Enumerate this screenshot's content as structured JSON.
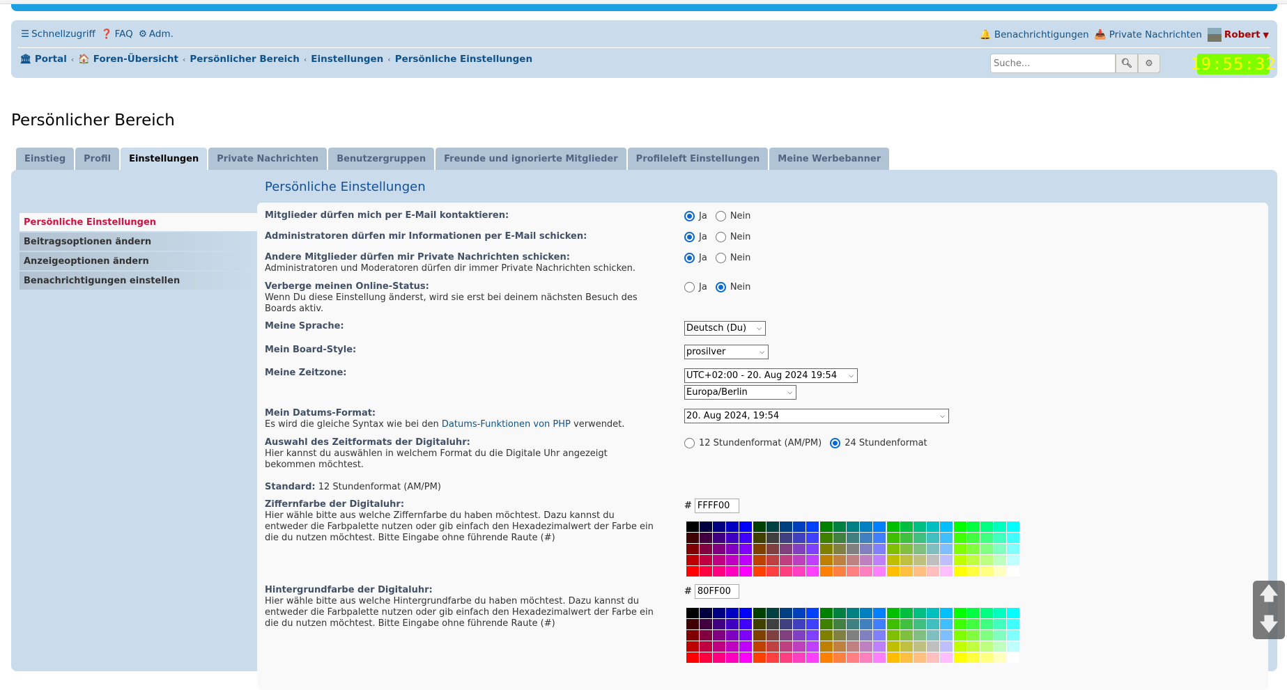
{
  "header": {
    "quick": "Schnellzugriff",
    "faq": "FAQ",
    "adm": "Adm.",
    "notifications": "Benachrichtigungen",
    "pm": "Private Nachrichten",
    "user": "Robert",
    "search_placeholder": "Suche...",
    "clock": "19:55:32"
  },
  "breadcrumb": [
    "Portal",
    "Foren-Übersicht",
    "Persönlicher Bereich",
    "Einstellungen",
    "Persönliche Einstellungen"
  ],
  "page_title": "Persönlicher Bereich",
  "tabs": [
    "Einstieg",
    "Profil",
    "Einstellungen",
    "Private Nachrichten",
    "Benutzergruppen",
    "Freunde und ignorierte Mitglieder",
    "Profileleft Einstellungen",
    "Meine Werbebanner"
  ],
  "active_tab": "Einstellungen",
  "panel_title": "Persönliche Einstellungen",
  "menu": [
    "Persönliche Einstellungen",
    "Beitragsoptionen ändern",
    "Anzeigeoptionen ändern",
    "Benachrichtigungen einstellen"
  ],
  "yes": "Ja",
  "no": "Nein",
  "form": {
    "email": {
      "label": "Mitglieder dürfen mich per E-Mail kontaktieren:",
      "value": "Ja"
    },
    "admin_email": {
      "label": "Administratoren dürfen mir Informationen per E-Mail schicken:",
      "value": "Ja"
    },
    "pm": {
      "label": "Andere Mitglieder dürfen mir Private Nachrichten schicken:",
      "explain": "Administratoren und Moderatoren dürfen dir immer Private Nachrichten schicken.",
      "value": "Ja"
    },
    "online": {
      "label": "Verberge meinen Online-Status:",
      "explain": "Wenn Du diese Einstellung änderst, wird sie erst bei deinem nächsten Besuch des Boards aktiv.",
      "value": "Nein"
    },
    "lang": {
      "label": "Meine Sprache:",
      "value": "Deutsch (Du)"
    },
    "style": {
      "label": "Mein Board-Style:",
      "value": "prosilver"
    },
    "tz": {
      "label": "Meine Zeitzone:",
      "value": "UTC+02:00 - 20. Aug 2024 19:54",
      "zone": "Europa/Berlin"
    },
    "date": {
      "label": "Mein Datums-Format:",
      "explain_pre": "Es wird die gleiche Syntax wie bei den ",
      "explain_link": "Datums-Funktionen von PHP",
      "explain_post": " verwendet.",
      "value": "20. Aug 2024, 19:54"
    },
    "clockfmt": {
      "label": "Auswahl des Zeitformats der Digitaluhr:",
      "explain": "Hier kannst du auswählen in welchem Format du die Digitale Uhr angezeigt bekommen möchtest.",
      "opt12": "12 Stundenformat (AM/PM)",
      "opt24": "24 Stundenformat",
      "value": "24"
    },
    "standard": {
      "label": "Standard:",
      "value": "12 Stundenformat (AM/PM)"
    },
    "digitcolor": {
      "label": "Ziffernfarbe der Digitaluhr:",
      "explain": "Hier wähle bitte aus welche Ziffernfarbe du haben möchtest. Dazu kannst du entweder die Farbpalette nutzen oder gib einfach den Hexadezimalwert der Farbe ein die du nutzen möchtest. Bitte Eingabe ohne führende Raute (#)",
      "value": "FFFF00"
    },
    "bgcolor": {
      "label": "Hintergrundfarbe der Digitaluhr:",
      "explain": "Hier wähle bitte aus welche Hintergrundfarbe du haben möchtest. Dazu kannst du entweder die Farbpalette nutzen oder gib einfach den Hexadezimalwert der Farbe ein die du nutzen möchtest. Bitte Eingabe ohne führende Raute (#)",
      "value": "80FF00"
    },
    "hash": "#"
  },
  "palette_levels": [
    "00",
    "40",
    "80",
    "BF",
    "FF"
  ],
  "colors": {
    "link": "#105289",
    "accent": "#d31141",
    "panel": "#cadceb",
    "clock_digits": "#FFFF00",
    "clock_bg": "#80FF00"
  }
}
